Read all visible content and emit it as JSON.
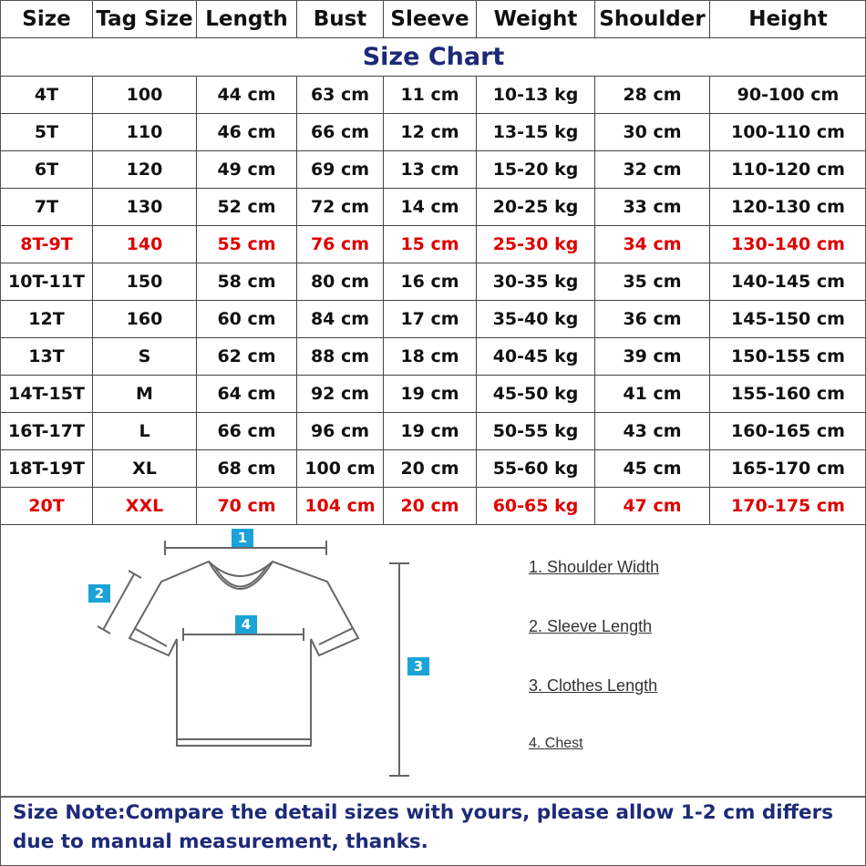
{
  "title": "Size Chart",
  "headers": [
    "Size",
    "Tag Size",
    "Length",
    "Bust",
    "Sleeve",
    "Weight",
    "Shoulder",
    "Height"
  ],
  "rows": [
    {
      "cells": [
        "4T",
        "100",
        "44 cm",
        "63 cm",
        "11 cm",
        "10-13 kg",
        "28 cm",
        "90-100 cm"
      ],
      "highlight": false
    },
    {
      "cells": [
        "5T",
        "110",
        "46 cm",
        "66 cm",
        "12 cm",
        "13-15 kg",
        "30 cm",
        "100-110 cm"
      ],
      "highlight": false
    },
    {
      "cells": [
        "6T",
        "120",
        "49 cm",
        "69 cm",
        "13 cm",
        "15-20 kg",
        "32 cm",
        "110-120 cm"
      ],
      "highlight": false
    },
    {
      "cells": [
        "7T",
        "130",
        "52 cm",
        "72 cm",
        "14 cm",
        "20-25 kg",
        "33 cm",
        "120-130 cm"
      ],
      "highlight": false
    },
    {
      "cells": [
        "8T-9T",
        "140",
        "55 cm",
        "76 cm",
        "15 cm",
        "25-30 kg",
        "34 cm",
        "130-140 cm"
      ],
      "highlight": true
    },
    {
      "cells": [
        "10T-11T",
        "150",
        "58 cm",
        "80 cm",
        "16 cm",
        "30-35 kg",
        "35 cm",
        "140-145 cm"
      ],
      "highlight": false
    },
    {
      "cells": [
        "12T",
        "160",
        "60 cm",
        "84 cm",
        "17 cm",
        "35-40 kg",
        "36 cm",
        "145-150 cm"
      ],
      "highlight": false
    },
    {
      "cells": [
        "13T",
        "S",
        "62 cm",
        "88 cm",
        "18 cm",
        "40-45 kg",
        "39 cm",
        "150-155 cm"
      ],
      "highlight": false
    },
    {
      "cells": [
        "14T-15T",
        "M",
        "64 cm",
        "92 cm",
        "19 cm",
        "45-50 kg",
        "41 cm",
        "155-160 cm"
      ],
      "highlight": false
    },
    {
      "cells": [
        "16T-17T",
        "L",
        "66 cm",
        "96 cm",
        "19 cm",
        "50-55 kg",
        "43 cm",
        "160-165 cm"
      ],
      "highlight": false
    },
    {
      "cells": [
        "18T-19T",
        "XL",
        "68 cm",
        "100 cm",
        "20 cm",
        "55-60 kg",
        "45 cm",
        "165-170 cm"
      ],
      "highlight": false
    },
    {
      "cells": [
        "20T",
        "XXL",
        "70 cm",
        "104 cm",
        "20 cm",
        "60-65 kg",
        "47 cm",
        "170-175 cm"
      ],
      "highlight": true
    }
  ],
  "colors": {
    "title": "#1c2a78",
    "highlight": "#e00000",
    "marker": "#1ba3d8"
  },
  "diagram": {
    "markers": [
      "1",
      "2",
      "3",
      "4"
    ],
    "legend": [
      "1. Shoulder Width",
      "2. Sleeve Length",
      "3. Clothes Length",
      "4. Chest"
    ]
  },
  "note": "Size Note:Compare the detail sizes with yours, please allow 1-2 cm  differs due to manual measurement, thanks."
}
